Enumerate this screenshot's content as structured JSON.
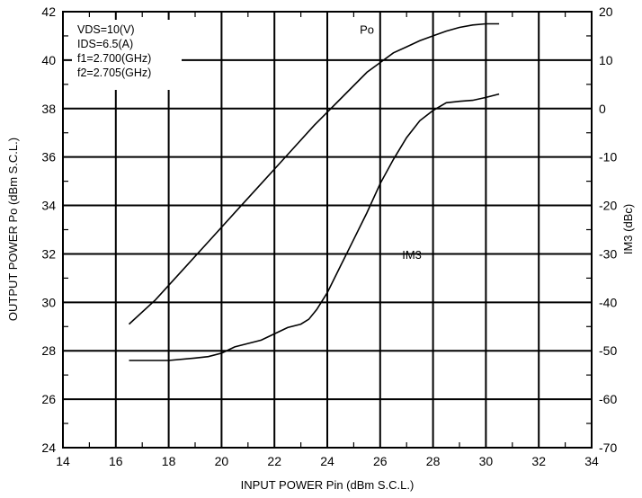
{
  "chart_data": {
    "type": "line",
    "xlabel": "INPUT POWER Pin (dBm S.C.L.)",
    "ylabel": "OUTPUT POWER Po (dBm S.C.L.)",
    "y2label": "IM3 (dBc)",
    "xlim": [
      14,
      34
    ],
    "ylim": [
      24,
      42
    ],
    "y2lim": [
      -70,
      20
    ],
    "x_ticks": [
      "14",
      "16",
      "18",
      "20",
      "22",
      "24",
      "26",
      "28",
      "30",
      "32",
      "34"
    ],
    "y_ticks": [
      "24",
      "26",
      "28",
      "30",
      "32",
      "34",
      "36",
      "38",
      "40",
      "42"
    ],
    "y2_ticks": [
      "20",
      "10",
      "0",
      "-10",
      "-20",
      "-30",
      "-40",
      "-50",
      "-60",
      "-70"
    ],
    "grid": true,
    "annotations": [
      "VDS=10(V)",
      "IDS=6.5(A)",
      "f1=2.700(GHz)",
      "f2=2.705(GHz)"
    ],
    "series": [
      {
        "name": "Po",
        "axis": "left",
        "x": [
          16.5,
          17.5,
          18.5,
          19.5,
          20.5,
          21.5,
          22.5,
          23.5,
          24.5,
          25.5,
          26.0,
          26.5,
          27.0,
          27.5,
          28.0,
          28.5,
          29.0,
          29.5,
          30.0,
          30.5
        ],
        "y": [
          29.1,
          30.1,
          31.3,
          32.5,
          33.7,
          34.9,
          36.1,
          37.3,
          38.4,
          39.5,
          39.9,
          40.3,
          40.55,
          40.8,
          41.0,
          41.2,
          41.35,
          41.45,
          41.5,
          41.5
        ],
        "label_pos": [
          25.5,
          41.1
        ]
      },
      {
        "name": "IM3",
        "axis": "right",
        "x": [
          16.5,
          17.0,
          18.0,
          19.0,
          19.5,
          20.0,
          20.5,
          21.0,
          21.5,
          22.0,
          22.5,
          23.0,
          23.3,
          23.6,
          24.0,
          24.5,
          25.0,
          25.5,
          26.0,
          26.5,
          27.0,
          27.5,
          28.0,
          28.5,
          29.0,
          29.5,
          30.0,
          30.5
        ],
        "y": [
          -52,
          -52,
          -52,
          -51.5,
          -51.2,
          -50.5,
          -49.2,
          -48.5,
          -47.8,
          -46.5,
          -45.2,
          -44.5,
          -43.5,
          -41.5,
          -38,
          -32.5,
          -27,
          -21.5,
          -15.5,
          -10.5,
          -6,
          -2.5,
          -0.4,
          1.2,
          1.5,
          1.7,
          2.3,
          3.0
        ],
        "label_pos": [
          27.2,
          -31
        ]
      }
    ]
  }
}
